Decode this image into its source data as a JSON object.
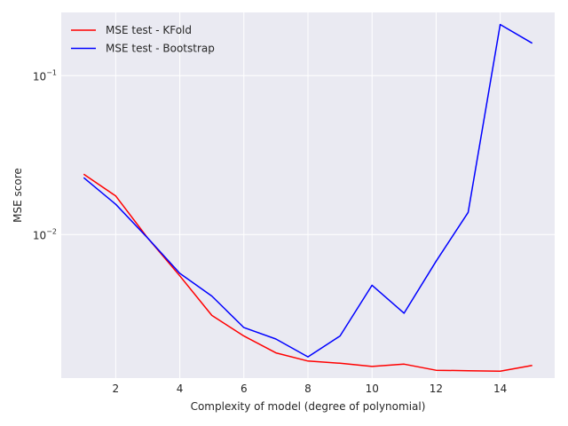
{
  "chart_data": {
    "type": "line",
    "title": "",
    "xlabel": "Complexity of model (degree of polynomial)",
    "ylabel": "MSE score",
    "yscale": "log",
    "xlim": [
      0.3,
      15.7
    ],
    "ylim": [
      0.00125,
      0.25
    ],
    "xticks": [
      2,
      4,
      6,
      8,
      10,
      12,
      14
    ],
    "yticks": [
      {
        "value": 0.01,
        "base": "10",
        "exponent": "−2"
      },
      {
        "value": 0.1,
        "base": "10",
        "exponent": "−1"
      }
    ],
    "grid": true,
    "legend": "upper left",
    "x": [
      1,
      2,
      3,
      4,
      5,
      6,
      7,
      8,
      9,
      10,
      11,
      12,
      13,
      14,
      15
    ],
    "series": [
      {
        "name": "MSE test - KFold",
        "color": "#ff0000",
        "values": [
          0.024,
          0.0175,
          0.0095,
          0.0055,
          0.0031,
          0.0023,
          0.0018,
          0.0016,
          0.00155,
          0.00148,
          0.00153,
          0.0014,
          0.00139,
          0.00138,
          0.0015
        ]
      },
      {
        "name": "MSE test - Bootstrap",
        "color": "#0000ff",
        "values": [
          0.0228,
          0.0155,
          0.0095,
          0.0057,
          0.0041,
          0.0026,
          0.0022,
          0.0017,
          0.0023,
          0.0048,
          0.0032,
          0.0068,
          0.0138,
          0.21,
          0.16
        ]
      }
    ]
  }
}
